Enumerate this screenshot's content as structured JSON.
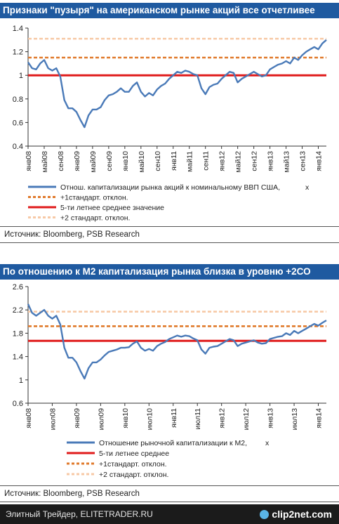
{
  "charts": [
    {
      "title": "Признаки \"пузыря\" на американском рынке акций все отчетливее",
      "source": "Источник: Bloomberg, PSB Research",
      "legend": [
        {
          "label": "Отнош. капитализации рынка акций к номинальному ВВП США,",
          "suffix": "x",
          "style": "solid",
          "color": "#4a7ab8"
        },
        {
          "label": "+1стандарт. отклон.",
          "style": "dash",
          "color": "#e07a2c"
        },
        {
          "label": "5-ти летнее среднее значение",
          "style": "solid",
          "color": "#e01b1b"
        },
        {
          "label": "+2 стандарт. отклон.",
          "style": "dash",
          "color": "#f7c9a6"
        }
      ]
    },
    {
      "title": "По отношению к М2 капитализация рынка близка в уровню +2СО",
      "source": "Источник: Bloomberg, PSB Research",
      "legend": [
        {
          "label": "Отношение рыночной капитализации к М2,",
          "suffix": "x",
          "style": "solid",
          "color": "#4a7ab8"
        },
        {
          "label": "5-ти летнее среднее",
          "style": "solid",
          "color": "#e01b1b"
        },
        {
          "label": "+1стандарт. отклон.",
          "style": "dash",
          "color": "#e07a2c"
        },
        {
          "label": "+2 стандарт. отклон.",
          "style": "dash",
          "color": "#f7c9a6"
        }
      ]
    }
  ],
  "chart_data": [
    {
      "type": "line",
      "title": "Признаки \"пузыря\" на американском рынке акций все отчетливее",
      "ylim": [
        0.4,
        1.4
      ],
      "yticks": [
        0.4,
        0.6,
        0.8,
        1,
        1.2,
        1.4
      ],
      "x_range": [
        "2008-01",
        "2014-03"
      ],
      "xticks": [
        "янв08",
        "май08",
        "сен08",
        "янв09",
        "май09",
        "сен09",
        "янв10",
        "май10",
        "сен10",
        "янв11",
        "май11",
        "сен11",
        "янв12",
        "май12",
        "сен12",
        "янв13",
        "май13",
        "сен13",
        "янв14"
      ],
      "grid": false,
      "legend_position": "bottom",
      "series": [
        {
          "name": "Отнош. капитализации рынка акций к номинальному ВВП США, x",
          "color": "#4a7ab8",
          "x": [
            "2008-01",
            "2008-02",
            "2008-03",
            "2008-04",
            "2008-05",
            "2008-06",
            "2008-07",
            "2008-08",
            "2008-09",
            "2008-10",
            "2008-11",
            "2008-12",
            "2009-01",
            "2009-02",
            "2009-03",
            "2009-04",
            "2009-05",
            "2009-06",
            "2009-07",
            "2009-08",
            "2009-09",
            "2009-10",
            "2009-11",
            "2009-12",
            "2010-01",
            "2010-02",
            "2010-03",
            "2010-04",
            "2010-05",
            "2010-06",
            "2010-07",
            "2010-08",
            "2010-09",
            "2010-10",
            "2010-11",
            "2010-12",
            "2011-01",
            "2011-02",
            "2011-03",
            "2011-04",
            "2011-05",
            "2011-06",
            "2011-07",
            "2011-08",
            "2011-09",
            "2011-10",
            "2011-11",
            "2011-12",
            "2012-01",
            "2012-02",
            "2012-03",
            "2012-04",
            "2012-05",
            "2012-06",
            "2012-07",
            "2012-08",
            "2012-09",
            "2012-10",
            "2012-11",
            "2012-12",
            "2013-01",
            "2013-02",
            "2013-03",
            "2013-04",
            "2013-05",
            "2013-06",
            "2013-07",
            "2013-08",
            "2013-09",
            "2013-10",
            "2013-11",
            "2013-12",
            "2014-01",
            "2014-02",
            "2014-03"
          ],
          "values": [
            1.11,
            1.06,
            1.05,
            1.1,
            1.13,
            1.06,
            1.04,
            1.06,
            0.99,
            0.79,
            0.72,
            0.72,
            0.69,
            0.62,
            0.56,
            0.66,
            0.71,
            0.71,
            0.73,
            0.79,
            0.83,
            0.84,
            0.86,
            0.89,
            0.86,
            0.86,
            0.91,
            0.94,
            0.86,
            0.82,
            0.85,
            0.83,
            0.88,
            0.91,
            0.93,
            0.97,
            1.0,
            1.03,
            1.02,
            1.04,
            1.03,
            1.01,
            1.0,
            0.89,
            0.84,
            0.9,
            0.92,
            0.93,
            0.97,
            1.0,
            1.03,
            1.02,
            0.94,
            0.97,
            0.99,
            1.01,
            1.03,
            1.01,
            0.99,
            1.0,
            1.05,
            1.07,
            1.09,
            1.1,
            1.12,
            1.1,
            1.15,
            1.13,
            1.17,
            1.2,
            1.22,
            1.24,
            1.22,
            1.27,
            1.3
          ]
        },
        {
          "name": "+1стандарт. отклон.",
          "color": "#e07a2c",
          "constant": 1.15
        },
        {
          "name": "5-ти летнее среднее значение",
          "color": "#e01b1b",
          "constant": 1.0
        },
        {
          "name": "+2 стандарт. отклон.",
          "color": "#f7c9a6",
          "constant": 1.31
        }
      ]
    },
    {
      "type": "line",
      "title": "По отношению к М2 капитализация рынка близка в уровню +2СО",
      "ylim": [
        0.6,
        2.6
      ],
      "yticks": [
        0.6,
        1,
        1.4,
        1.8,
        2.2,
        2.6
      ],
      "x_range": [
        "2008-01",
        "2014-03"
      ],
      "xticks": [
        "янв08",
        "июл08",
        "янв09",
        "июл09",
        "янв10",
        "июл10",
        "янв11",
        "июл11",
        "янв12",
        "июл12",
        "янв13",
        "июл13",
        "янв14"
      ],
      "grid": false,
      "legend_position": "bottom",
      "series": [
        {
          "name": "Отношение рыночной капитализации к М2, x",
          "color": "#4a7ab8",
          "x": [
            "2008-01",
            "2008-02",
            "2008-03",
            "2008-04",
            "2008-05",
            "2008-06",
            "2008-07",
            "2008-08",
            "2008-09",
            "2008-10",
            "2008-11",
            "2008-12",
            "2009-01",
            "2009-02",
            "2009-03",
            "2009-04",
            "2009-05",
            "2009-06",
            "2009-07",
            "2009-08",
            "2009-09",
            "2009-10",
            "2009-11",
            "2009-12",
            "2010-01",
            "2010-02",
            "2010-03",
            "2010-04",
            "2010-05",
            "2010-06",
            "2010-07",
            "2010-08",
            "2010-09",
            "2010-10",
            "2010-11",
            "2010-12",
            "2011-01",
            "2011-02",
            "2011-03",
            "2011-04",
            "2011-05",
            "2011-06",
            "2011-07",
            "2011-08",
            "2011-09",
            "2011-10",
            "2011-11",
            "2011-12",
            "2012-01",
            "2012-02",
            "2012-03",
            "2012-04",
            "2012-05",
            "2012-06",
            "2012-07",
            "2012-08",
            "2012-09",
            "2012-10",
            "2012-11",
            "2012-12",
            "2013-01",
            "2013-02",
            "2013-03",
            "2013-04",
            "2013-05",
            "2013-06",
            "2013-07",
            "2013-08",
            "2013-09",
            "2013-10",
            "2013-11",
            "2013-12",
            "2014-01",
            "2014-02",
            "2014-03"
          ],
          "values": [
            2.3,
            2.15,
            2.1,
            2.15,
            2.2,
            2.1,
            2.05,
            2.1,
            1.95,
            1.55,
            1.38,
            1.38,
            1.3,
            1.15,
            1.02,
            1.2,
            1.3,
            1.3,
            1.35,
            1.42,
            1.48,
            1.5,
            1.52,
            1.55,
            1.55,
            1.56,
            1.62,
            1.66,
            1.55,
            1.5,
            1.53,
            1.5,
            1.58,
            1.62,
            1.65,
            1.7,
            1.73,
            1.76,
            1.74,
            1.76,
            1.75,
            1.71,
            1.68,
            1.52,
            1.45,
            1.55,
            1.57,
            1.58,
            1.62,
            1.66,
            1.7,
            1.68,
            1.58,
            1.62,
            1.64,
            1.66,
            1.68,
            1.64,
            1.62,
            1.63,
            1.7,
            1.72,
            1.74,
            1.75,
            1.8,
            1.77,
            1.84,
            1.8,
            1.84,
            1.88,
            1.92,
            1.96,
            1.93,
            1.98,
            2.02
          ]
        },
        {
          "name": "5-ти летнее среднее",
          "color": "#e01b1b",
          "constant": 1.67
        },
        {
          "name": "+1стандарт. отклон.",
          "color": "#e07a2c",
          "constant": 1.92
        },
        {
          "name": "+2 стандарт. отклон.",
          "color": "#f7c9a6",
          "constant": 2.17
        }
      ]
    }
  ],
  "footer": {
    "text": "Элитный Трейдер, ELITETRADER.RU",
    "logo": "clip2net.com"
  }
}
